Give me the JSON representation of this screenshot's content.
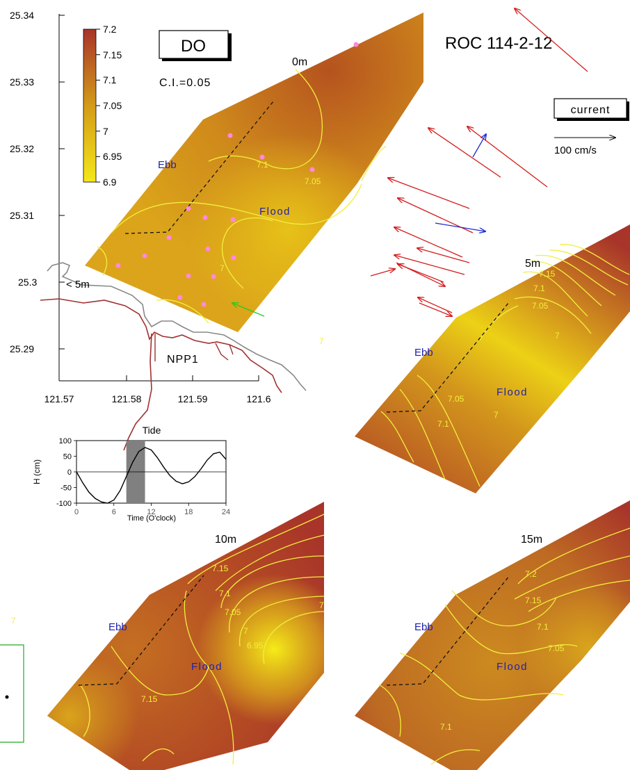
{
  "header": {
    "title": "ROC 114-2-12"
  },
  "variable": {
    "label": "DO",
    "contour_interval": "C.I.=0.05"
  },
  "colors": {
    "scale_low": "#f5e81a",
    "scale_mid": "#d49b19",
    "scale_high": "#a8342a",
    "contour": "#f2ef3c",
    "current_arrow": "#d41c1c",
    "current_arrow_alt": "#1c2cd4",
    "wind_arrow": "#22cc22",
    "station": "#ff88dd",
    "coast_outer": "#888888",
    "coast_inner": "#a03030",
    "tide_window": "#808080",
    "flood_ebb_text": "#2020b0"
  },
  "legend": {
    "ticks": [
      "7.2",
      "7.15",
      "7.1",
      "7.05",
      "7",
      "6.95",
      "6.9"
    ]
  },
  "current": {
    "box_label": "current",
    "scale_label": "100 cm/s"
  },
  "map": {
    "yticks": [
      "25.34",
      "25.33",
      "25.32",
      "25.31",
      "25.3",
      "25.29"
    ],
    "xticks": [
      "121.57",
      "121.58",
      "121.59",
      "121.6"
    ],
    "depth_note": "< 5m",
    "site": "NPP1"
  },
  "panels": {
    "p0": {
      "depth": "0m",
      "ebb": "Ebb",
      "flood": "Flood",
      "contours": [
        {
          "text": "7.1"
        },
        {
          "text": "7.05"
        },
        {
          "text": "7"
        }
      ]
    },
    "p5": {
      "depth": "5m",
      "ebb": "Ebb",
      "flood": "Flood",
      "contours": [
        {
          "text": "7.15"
        },
        {
          "text": "7.1"
        },
        {
          "text": "7.05"
        },
        {
          "text": "7"
        },
        {
          "text": "7.05"
        },
        {
          "text": "7.1"
        },
        {
          "text": "7"
        }
      ]
    },
    "p10": {
      "depth": "10m",
      "ebb": "Ebb",
      "flood": "Flood",
      "contours": [
        {
          "text": "7.15"
        },
        {
          "text": "7.1"
        },
        {
          "text": "7.05"
        },
        {
          "text": "7"
        },
        {
          "text": "6.95"
        },
        {
          "text": "7.15"
        }
      ]
    },
    "p15": {
      "depth": "15m",
      "ebb": "Ebb",
      "flood": "Flood",
      "contours": [
        {
          "text": "7.2"
        },
        {
          "text": "7.15"
        },
        {
          "text": "7.1"
        },
        {
          "text": "7.05"
        },
        {
          "text": "7.1"
        }
      ]
    }
  },
  "stray_labels": [
    "7",
    "7",
    "7"
  ],
  "tide": {
    "title": "Tide",
    "ylabel": "H (cm)",
    "xlabel": "Time (O'clock)"
  },
  "chart_data": {
    "type": "line",
    "title": "Tide",
    "xlabel": "Time (O'clock)",
    "ylabel": "H (cm)",
    "x_ticks": [
      0,
      6,
      12,
      18,
      24
    ],
    "y_ticks": [
      100,
      50,
      0,
      -50,
      -100
    ],
    "xlim": [
      0,
      24
    ],
    "ylim": [
      -100,
      100
    ],
    "highlight_window": [
      8,
      11
    ],
    "series": [
      {
        "x": [
          0,
          1,
          2,
          3,
          4,
          5,
          6,
          7,
          8,
          9,
          10,
          11,
          12,
          13,
          14,
          15,
          16,
          17,
          18,
          19,
          20,
          21,
          22,
          23,
          24
        ],
        "y": [
          0,
          -35,
          -65,
          -85,
          -96,
          -100,
          -90,
          -60,
          -15,
          30,
          65,
          78,
          70,
          45,
          15,
          -12,
          -30,
          -38,
          -32,
          -15,
          10,
          38,
          58,
          63,
          40
        ]
      }
    ]
  }
}
